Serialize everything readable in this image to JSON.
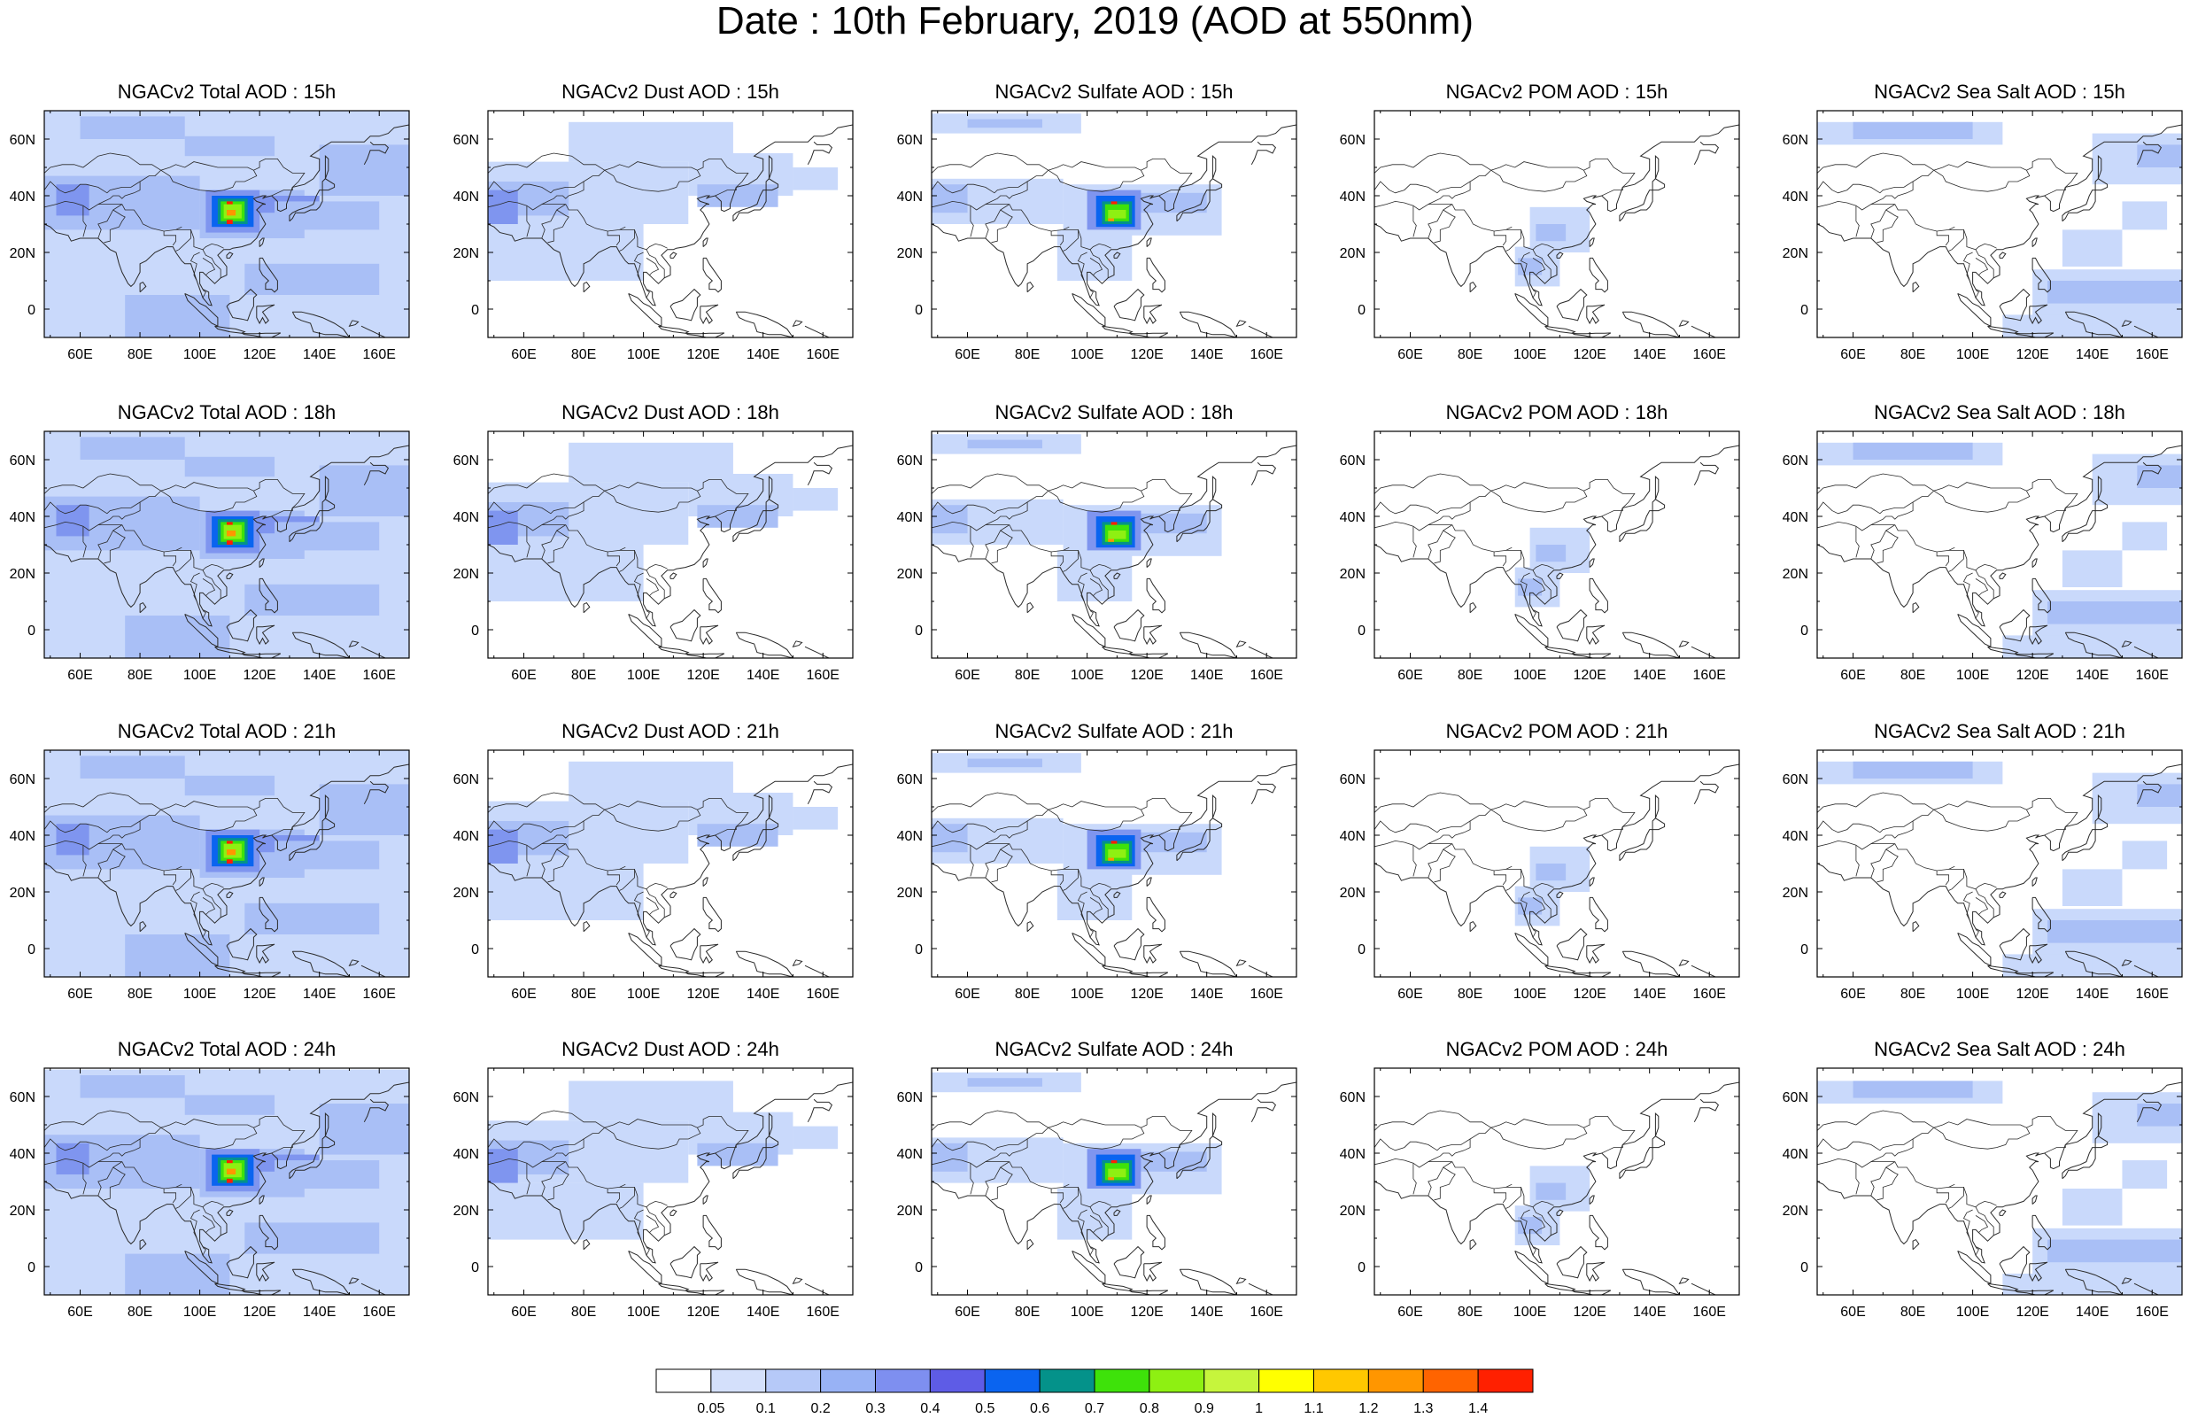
{
  "title": "Date : 10th February, 2019 (AOD at 550nm)",
  "species": [
    "Total",
    "Dust",
    "Sulfate",
    "POM",
    "Sea Salt"
  ],
  "hours": [
    "15h",
    "18h",
    "21h",
    "24h"
  ],
  "panels": [
    [
      "NGACv2 Total AOD : 15h",
      "NGACv2 Dust AOD : 15h",
      "NGACv2 Sulfate AOD : 15h",
      "NGACv2 POM AOD : 15h",
      "NGACv2 Sea Salt AOD : 15h"
    ],
    [
      "NGACv2 Total AOD : 18h",
      "NGACv2 Dust AOD : 18h",
      "NGACv2 Sulfate AOD : 18h",
      "NGACv2 POM AOD : 18h",
      "NGACv2 Sea Salt AOD : 18h"
    ],
    [
      "NGACv2 Total AOD : 21h",
      "NGACv2 Dust AOD : 21h",
      "NGACv2 Sulfate AOD : 21h",
      "NGACv2 POM AOD : 21h",
      "NGACv2 Sea Salt AOD : 21h"
    ],
    [
      "NGACv2 Total AOD : 24h",
      "NGACv2 Dust AOD : 24h",
      "NGACv2 Sulfate AOD : 24h",
      "NGACv2 POM AOD : 24h",
      "NGACv2 Sea Salt  AOD : 24h"
    ]
  ],
  "map": {
    "lon_range": [
      48,
      170
    ],
    "lat_range": [
      -10,
      70
    ],
    "lon_ticks": [
      60,
      80,
      100,
      120,
      140,
      160
    ],
    "lon_tick_labels": [
      "60E",
      "80E",
      "100E",
      "120E",
      "140E",
      "160E"
    ],
    "lat_ticks": [
      0,
      20,
      40,
      60
    ],
    "lat_tick_labels": [
      "0",
      "20N",
      "40N",
      "60N"
    ]
  },
  "colorbar": {
    "labels": [
      "0.05",
      "0.1",
      "0.2",
      "0.3",
      "0.4",
      "0.5",
      "0.6",
      "0.7",
      "0.8",
      "0.9",
      "1",
      "1.1",
      "1.2",
      "1.3",
      "1.4"
    ],
    "colors": [
      "#ffffff",
      "#d4e0fb",
      "#b6c9f8",
      "#98b2f5",
      "#7e8ff0",
      "#5e5ce6",
      "#0a64f0",
      "#04928a",
      "#3ee20a",
      "#8ef012",
      "#c6f53c",
      "#ffff00",
      "#ffc800",
      "#ff9600",
      "#ff6400",
      "#ff2000"
    ]
  },
  "colors": {
    "light_blue": "#c9d9fb",
    "mid_blue": "#a9bff6",
    "blue": "#7f95ef",
    "coastline": "#2a2a2a"
  }
}
